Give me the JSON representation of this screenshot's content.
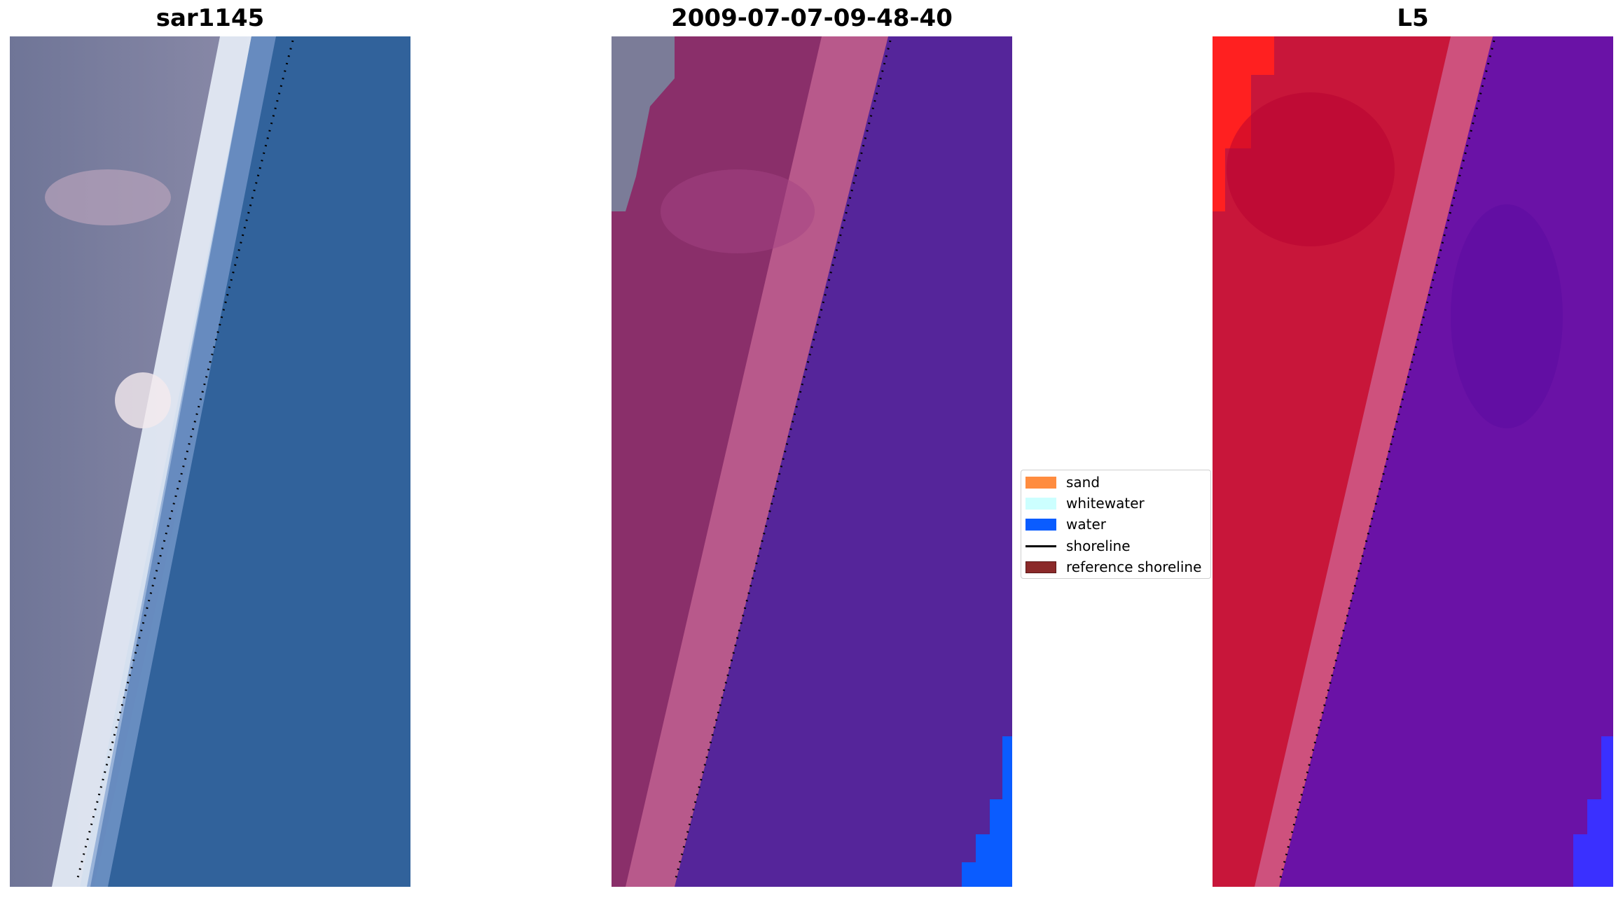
{
  "panels": [
    {
      "title": "sar1145",
      "kind": "rgb"
    },
    {
      "title": "2009-07-07-09-48-40",
      "kind": "classified"
    },
    {
      "title": "L5",
      "kind": "mndwi"
    }
  ],
  "legend": {
    "items": [
      {
        "label": "sand",
        "color": "#ff8c3f",
        "type": "box"
      },
      {
        "label": "whitewater",
        "color": "#ccffff",
        "type": "box"
      },
      {
        "label": "water",
        "color": "#0a5cff",
        "type": "box"
      },
      {
        "label": "shoreline",
        "color": "#000000",
        "type": "line"
      },
      {
        "label": "reference shoreline",
        "color": "#8b2a2a",
        "type": "box"
      }
    ]
  },
  "colors": {
    "rgb_land": "#7a7a97",
    "rgb_surf": "#e8eef8",
    "rgb_sea": "#2e6aa6",
    "class_land": "#8a2f6a",
    "class_beach": "#c06090",
    "class_sea": "#55259a",
    "class_water": "#0a5cff",
    "index_land": "#c8163a",
    "index_sea": "#6a12a6",
    "index_hot": "#ff2020"
  }
}
